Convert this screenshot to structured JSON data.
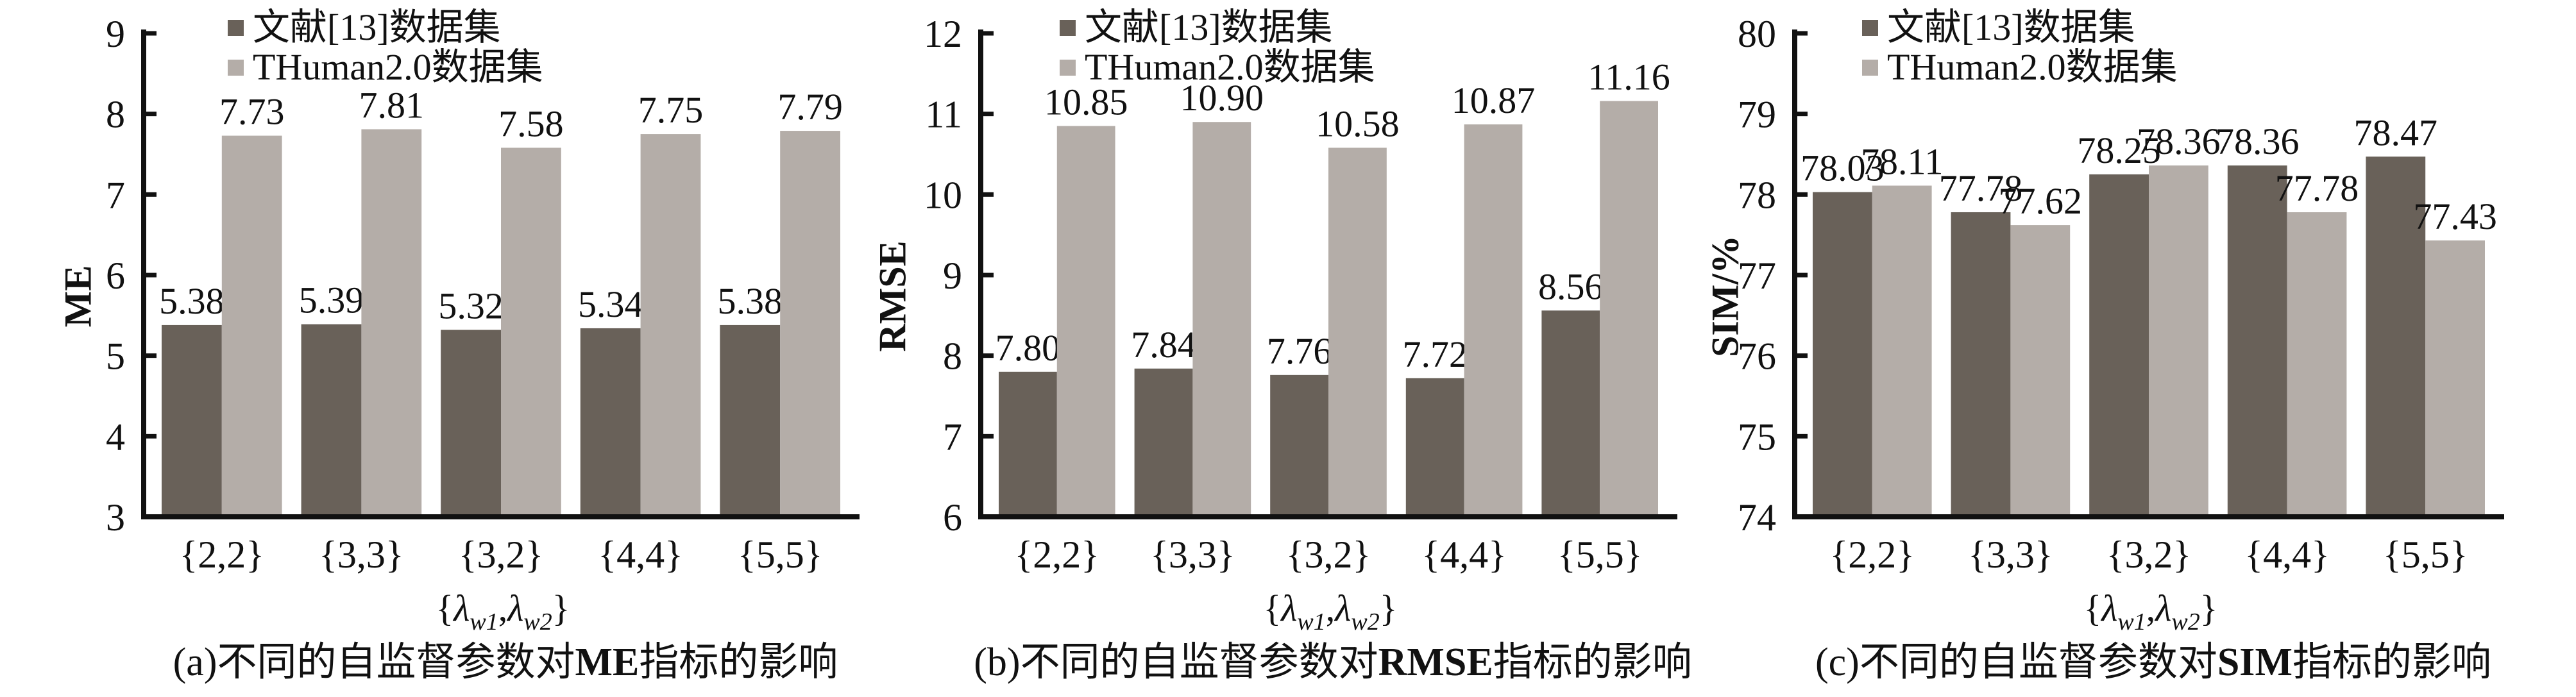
{
  "figure": {
    "background": "#ffffff",
    "axis_color": "#111111",
    "legend": [
      {
        "label": "文献[13]数据集",
        "color": "#696159"
      },
      {
        "label": "THuman2.0数据集",
        "color": "#b4ada8"
      }
    ],
    "xlabel": "{λw1,λw2}",
    "xlabel_parts": [
      {
        "t": "{"
      },
      {
        "t": "λ",
        "i": 1
      },
      {
        "t": "w1",
        "sub": 1
      },
      {
        "t": ",",
        "i": 0
      },
      {
        "t": "λ",
        "i": 1
      },
      {
        "t": "w2",
        "sub": 1
      },
      {
        "t": "}"
      }
    ],
    "categories": [
      "{2,2}",
      "{3,3}",
      "{3,2}",
      "{4,4}",
      "{5,5}"
    ]
  },
  "chart_data": [
    {
      "type": "bar",
      "panel": "a",
      "title": "(a)不同的自监督参数对ME指标的影响",
      "caption": {
        "pre": "(a)不同的自监督参数对",
        "metric": "ME",
        "post": "指标的影响"
      },
      "ylabel": "ME",
      "xlabel": "{λw1,λw2}",
      "ylim": [
        3,
        9
      ],
      "yticks": [
        3,
        4,
        5,
        6,
        7,
        8,
        9
      ],
      "grid": false,
      "legend_position": "top-left",
      "categories": [
        "{2,2}",
        "{3,3}",
        "{3,2}",
        "{4,4}",
        "{5,5}"
      ],
      "series": [
        {
          "name": "文献[13]数据集",
          "color": "#696159",
          "values": [
            5.38,
            5.39,
            5.32,
            5.34,
            5.38
          ],
          "labels": [
            "5.38",
            "5.39",
            "5.32",
            "5.34",
            "5.38"
          ]
        },
        {
          "name": "THuman2.0数据集",
          "color": "#b4ada8",
          "values": [
            7.73,
            7.81,
            7.58,
            7.75,
            7.79
          ],
          "labels": [
            "7.73",
            "7.81",
            "7.58",
            "7.75",
            "7.79"
          ]
        }
      ]
    },
    {
      "type": "bar",
      "panel": "b",
      "title": "(b)不同的自监督参数对RMSE指标的影响",
      "caption": {
        "pre": "(b)不同的自监督参数对",
        "metric": "RMSE",
        "post": "指标的影响"
      },
      "ylabel": "RMSE",
      "xlabel": "{λw1,λw2}",
      "ylim": [
        6,
        12
      ],
      "yticks": [
        6,
        7,
        8,
        9,
        10,
        11,
        12
      ],
      "grid": false,
      "legend_position": "top-left",
      "categories": [
        "{2,2}",
        "{3,3}",
        "{3,2}",
        "{4,4}",
        "{5,5}"
      ],
      "series": [
        {
          "name": "文献[13]数据集",
          "color": "#696159",
          "values": [
            7.8,
            7.84,
            7.76,
            7.72,
            8.56
          ],
          "labels": [
            "7.80",
            "7.84",
            "7.76",
            "7.72",
            "8.56"
          ]
        },
        {
          "name": "THuman2.0数据集",
          "color": "#b4ada8",
          "values": [
            10.85,
            10.9,
            10.58,
            10.87,
            11.16
          ],
          "labels": [
            "10.85",
            "10.90",
            "10.58",
            "10.87",
            "11.16"
          ]
        }
      ]
    },
    {
      "type": "bar",
      "panel": "c",
      "title": "(c)不同的自监督参数对SIM指标的影响",
      "caption": {
        "pre": "(c)不同的自监督参数对",
        "metric": "SIM",
        "post": "指标的影响"
      },
      "ylabel": "SIM/%",
      "xlabel": "{λw1,λw2}",
      "ylim": [
        74,
        80
      ],
      "yticks": [
        74,
        75,
        76,
        77,
        78,
        79,
        80
      ],
      "grid": false,
      "legend_position": "top-left",
      "categories": [
        "{2,2}",
        "{3,3}",
        "{3,2}",
        "{4,4}",
        "{5,5}"
      ],
      "series": [
        {
          "name": "文献[13]数据集",
          "color": "#696159",
          "values": [
            78.03,
            77.78,
            78.25,
            78.36,
            78.47
          ],
          "labels": [
            "78.03",
            "77.78",
            "78.25",
            "78.36",
            "78.47"
          ]
        },
        {
          "name": "THuman2.0数据集",
          "color": "#b4ada8",
          "values": [
            78.11,
            77.62,
            78.36,
            77.78,
            77.43
          ],
          "labels": [
            "78.11",
            "77.62",
            "78.36",
            "77.78",
            "77.43"
          ]
        }
      ]
    }
  ]
}
